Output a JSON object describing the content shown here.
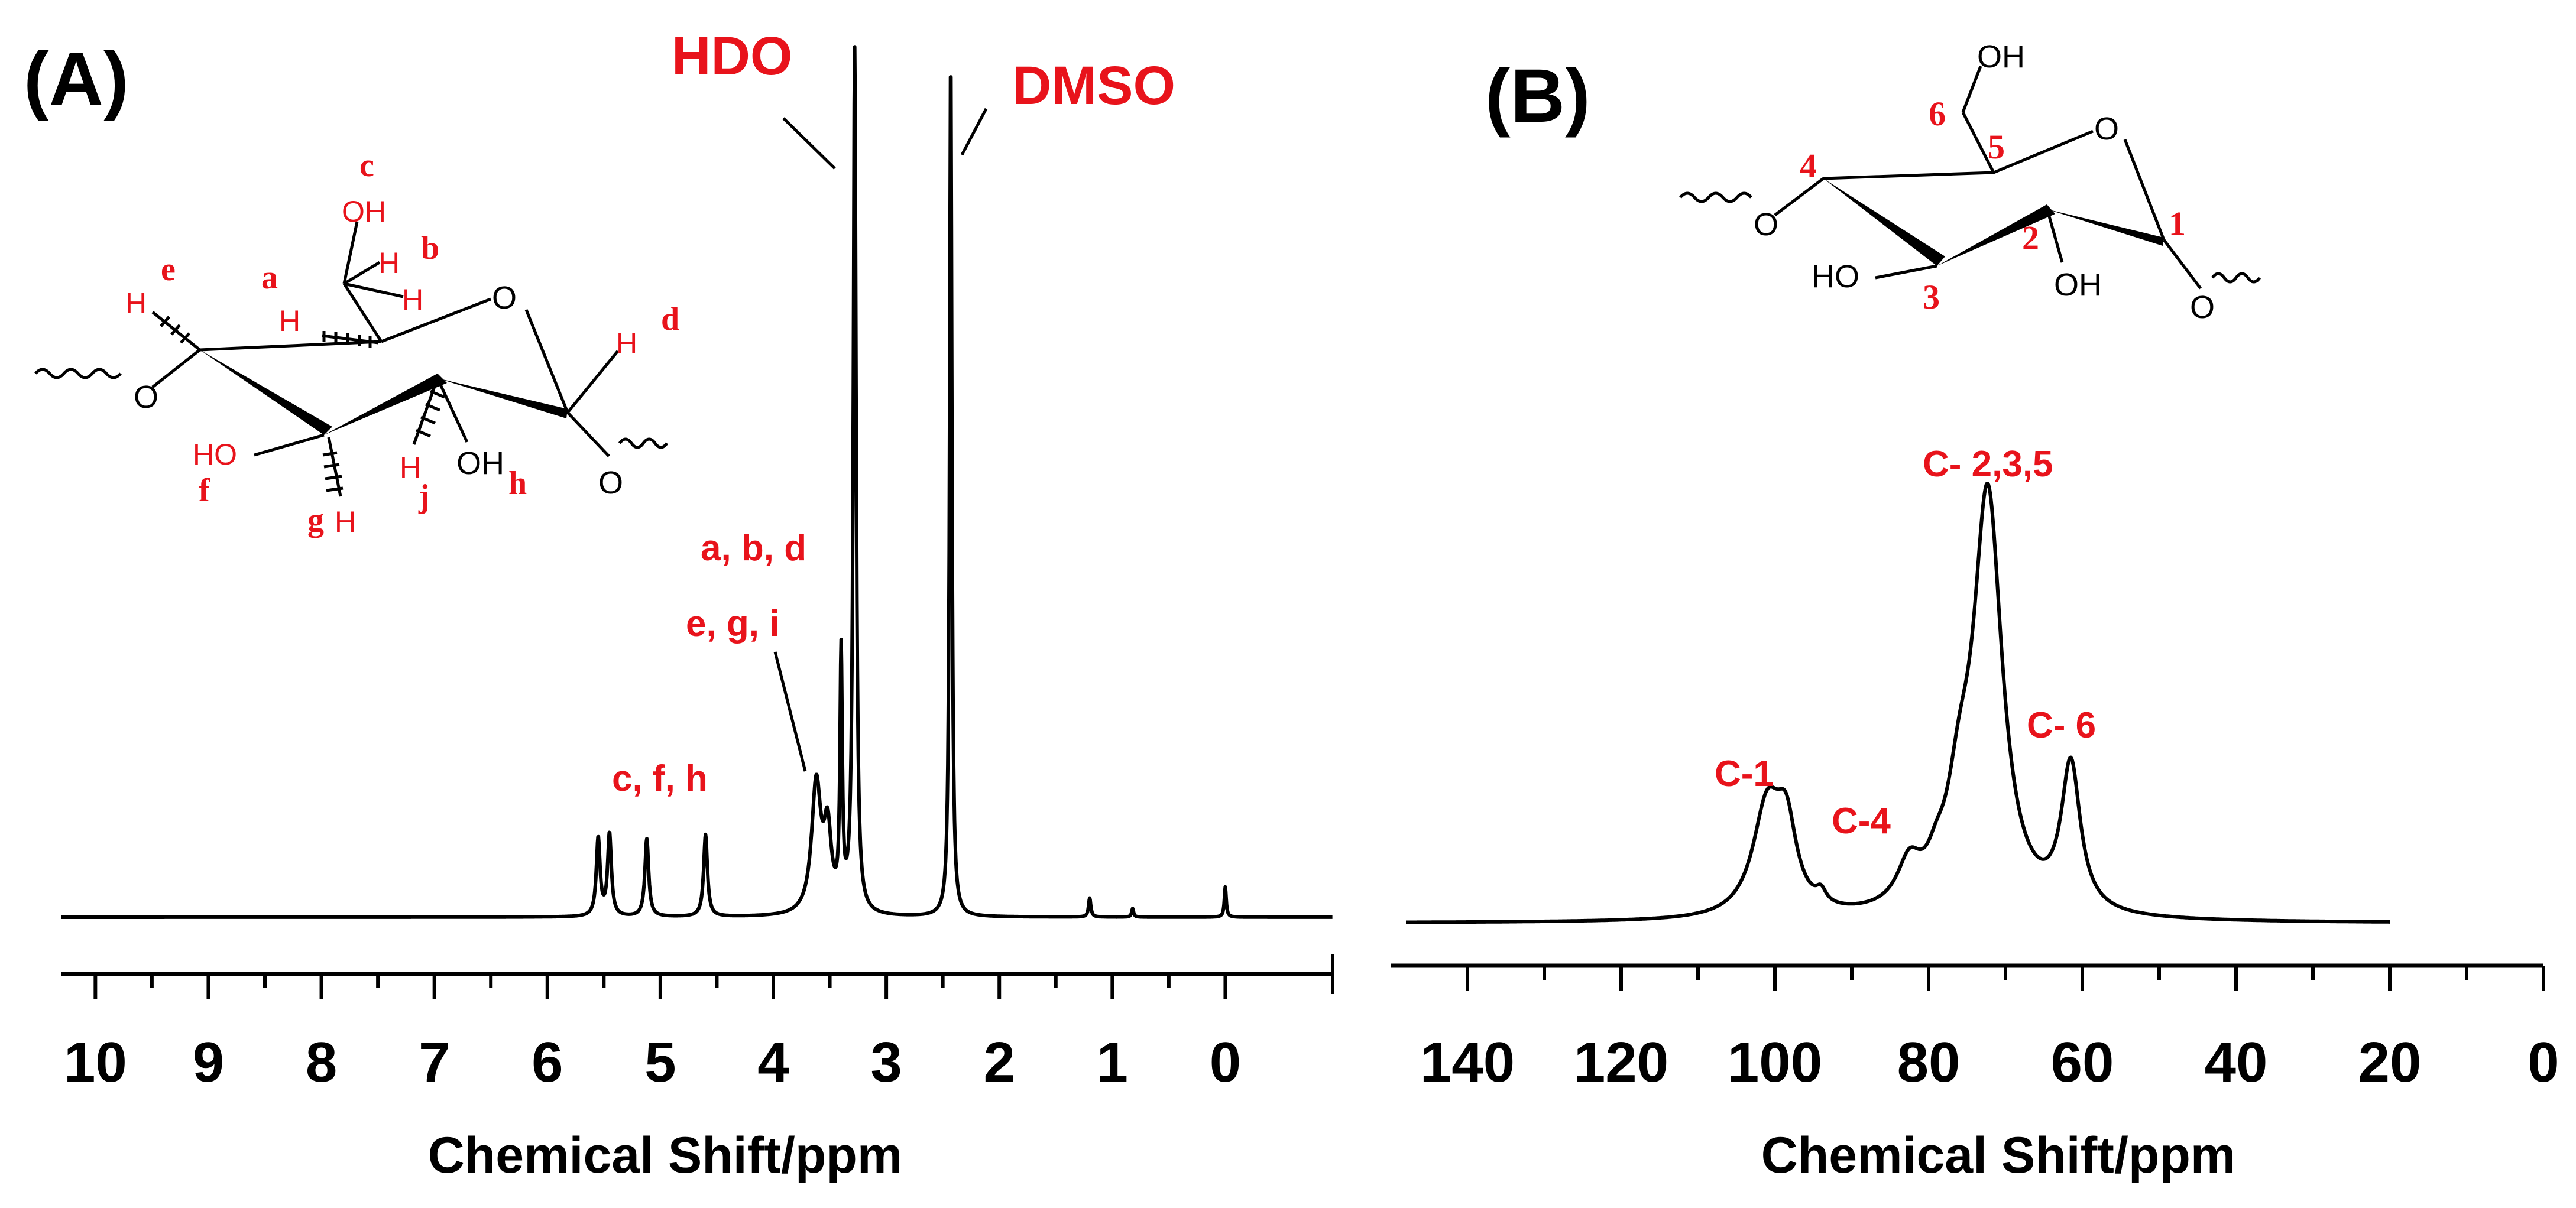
{
  "chart_data": [
    {
      "panel": "(A)",
      "type": "line",
      "spectrum": "1H NMR",
      "xlabel": "Chemical Shift/ppm",
      "ylabel": "",
      "xlim": [
        10.3,
        -0.95
      ],
      "x_reversed": true,
      "xticks": [
        10,
        9,
        8,
        7,
        6,
        5,
        4,
        3,
        2,
        1,
        0
      ],
      "baseline_y": 0.0,
      "ylim": [
        0,
        1.0
      ],
      "peaks": [
        {
          "x": 5.55,
          "y": 0.09,
          "w": 0.02
        },
        {
          "x": 5.45,
          "y": 0.095,
          "w": 0.02
        },
        {
          "x": 5.12,
          "y": 0.09,
          "w": 0.02
        },
        {
          "x": 4.6,
          "y": 0.095,
          "w": 0.02
        },
        {
          "x": 3.62,
          "y": 0.15,
          "w": 0.05
        },
        {
          "x": 3.52,
          "y": 0.09,
          "w": 0.04
        },
        {
          "x": 3.4,
          "y": 0.29,
          "w": 0.012
        },
        {
          "x": 3.28,
          "y": 1.0,
          "w": 0.015
        },
        {
          "x": 2.43,
          "y": 1.0,
          "w": 0.012
        },
        {
          "x": 1.2,
          "y": 0.022,
          "w": 0.012
        },
        {
          "x": 0.82,
          "y": 0.01,
          "w": 0.01
        },
        {
          "x": 0.0,
          "y": 0.035,
          "w": 0.01
        }
      ],
      "annotations": [
        {
          "text": "HDO",
          "x": 3.28,
          "kind": "solvent"
        },
        {
          "text": "DMSO",
          "x": 2.43,
          "kind": "solvent"
        },
        {
          "text": "a, b, d",
          "x": 3.5
        },
        {
          "text": "e, g, i",
          "x": 3.7
        },
        {
          "text": "c, f, h",
          "x": 5.1
        }
      ],
      "molecule_labels": {
        "proton_letters": [
          "a",
          "b",
          "c",
          "d",
          "e",
          "f",
          "g",
          "h",
          "j"
        ],
        "atoms": [
          "OH",
          "H",
          "O"
        ]
      }
    },
    {
      "panel": "(B)",
      "type": "line",
      "spectrum": "13C NMR",
      "xlabel": "Chemical Shift/ppm",
      "ylabel": "",
      "xlim": [
        150,
        0
      ],
      "x_reversed": true,
      "xticks": [
        140,
        120,
        100,
        80,
        60,
        40,
        20,
        0
      ],
      "data_range": [
        148,
        20
      ],
      "baseline_y": 0.0,
      "ylim": [
        0,
        1.0
      ],
      "peaks": [
        {
          "x": 101,
          "y": 0.26,
          "w": 2.3
        },
        {
          "x": 98.5,
          "y": 0.18,
          "w": 1.6
        },
        {
          "x": 94,
          "y": 0.03,
          "w": 0.8
        },
        {
          "x": 82.5,
          "y": 0.1,
          "w": 1.9
        },
        {
          "x": 79,
          "y": 0.05,
          "w": 1.4
        },
        {
          "x": 76,
          "y": 0.2,
          "w": 2.0
        },
        {
          "x": 72.3,
          "y": 1.0,
          "w": 2.3
        },
        {
          "x": 61.5,
          "y": 0.35,
          "w": 1.5
        }
      ],
      "annotations": [
        {
          "text": "C-1",
          "x": 100.5
        },
        {
          "text": "C-4",
          "x": 83
        },
        {
          "text": "C- 2,3,5",
          "x": 72.3
        },
        {
          "text": "C- 6",
          "x": 61.5
        }
      ],
      "molecule_labels": {
        "carbon_numbers": [
          "1",
          "2",
          "3",
          "4",
          "5",
          "6"
        ],
        "atoms": [
          "OH",
          "HO",
          "O"
        ]
      }
    }
  ]
}
